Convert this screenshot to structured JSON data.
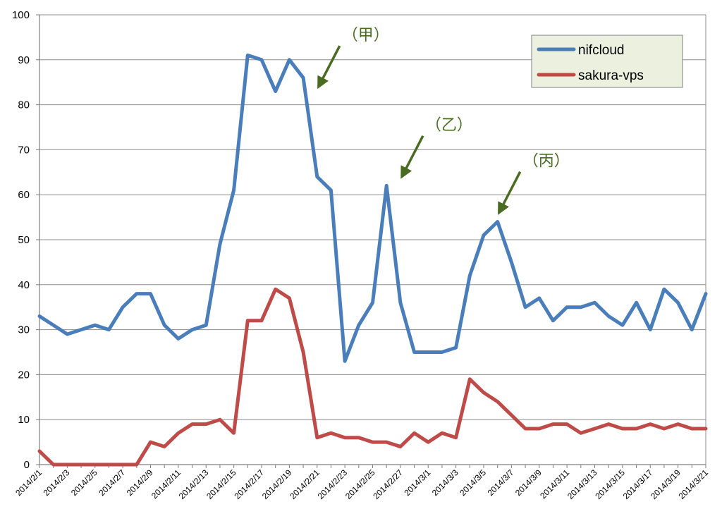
{
  "chart_data": {
    "type": "line",
    "title": "",
    "xlabel": "",
    "ylabel": "",
    "ylim": [
      0,
      100
    ],
    "yticks": [
      0,
      10,
      20,
      30,
      40,
      50,
      60,
      70,
      80,
      90,
      100
    ],
    "grid": true,
    "legend_position": "top-right",
    "x": [
      "2014/2/1",
      "2014/2/2",
      "2014/2/3",
      "2014/2/4",
      "2014/2/5",
      "2014/2/6",
      "2014/2/7",
      "2014/2/8",
      "2014/2/9",
      "2014/2/10",
      "2014/2/11",
      "2014/2/12",
      "2014/2/13",
      "2014/2/14",
      "2014/2/15",
      "2014/2/16",
      "2014/2/17",
      "2014/2/18",
      "2014/2/19",
      "2014/2/20",
      "2014/2/21",
      "2014/2/22",
      "2014/2/23",
      "2014/2/24",
      "2014/2/25",
      "2014/2/26",
      "2014/2/27",
      "2014/2/28",
      "2014/3/1",
      "2014/3/2",
      "2014/3/3",
      "2014/3/4",
      "2014/3/5",
      "2014/3/6",
      "2014/3/7",
      "2014/3/8",
      "2014/3/9",
      "2014/3/10",
      "2014/3/11",
      "2014/3/12",
      "2014/3/13",
      "2014/3/14",
      "2014/3/15",
      "2014/3/16",
      "2014/3/17",
      "2014/3/18",
      "2014/3/19",
      "2014/3/20",
      "2014/3/21"
    ],
    "xtick_labels": [
      "2014/2/1",
      "2014/2/3",
      "2014/2/5",
      "2014/2/7",
      "2014/2/9",
      "2014/2/11",
      "2014/2/13",
      "2014/2/15",
      "2014/2/17",
      "2014/2/19",
      "2014/2/21",
      "2014/2/23",
      "2014/2/25",
      "2014/2/27",
      "2014/3/1",
      "2014/3/3",
      "2014/3/5",
      "2014/3/7",
      "2014/3/9",
      "2014/3/11",
      "2014/3/13",
      "2014/3/15",
      "2014/3/17",
      "2014/3/19",
      "2014/3/21"
    ],
    "series": [
      {
        "name": "nifcloud",
        "color": "#4a7ebb",
        "values": [
          33,
          31,
          29,
          30,
          31,
          30,
          35,
          38,
          38,
          31,
          28,
          30,
          31,
          49,
          61,
          91,
          90,
          83,
          90,
          86,
          64,
          61,
          23,
          31,
          36,
          62,
          36,
          25,
          25,
          25,
          26,
          42,
          51,
          54,
          45,
          35,
          37,
          32,
          35,
          35,
          36,
          33,
          31,
          36,
          30,
          39,
          36,
          30,
          38
        ]
      },
      {
        "name": "sakura-vps",
        "color": "#be4b48",
        "values": [
          3,
          0,
          0,
          0,
          0,
          0,
          0,
          0,
          5,
          4,
          7,
          9,
          9,
          10,
          7,
          32,
          32,
          39,
          37,
          25,
          6,
          7,
          6,
          6,
          5,
          5,
          4,
          7,
          5,
          7,
          6,
          19,
          16,
          14,
          11,
          8,
          8,
          9,
          9,
          7,
          8,
          9,
          8,
          8,
          9,
          8,
          9,
          8,
          8
        ]
      }
    ],
    "annotations": [
      {
        "text": "（甲）",
        "x": "2014/2/21",
        "value": 84,
        "color": "#4a6b22"
      },
      {
        "text": "（乙）",
        "x": "2014/2/27",
        "value": 64,
        "color": "#4a6b22"
      },
      {
        "text": "（丙）",
        "x": "2014/3/6",
        "value": 56,
        "color": "#4a6b22"
      }
    ]
  },
  "colors": {
    "legend_background": "#ebf1de",
    "grid": "#8c8c8c",
    "annotation": "#4a6b22"
  }
}
